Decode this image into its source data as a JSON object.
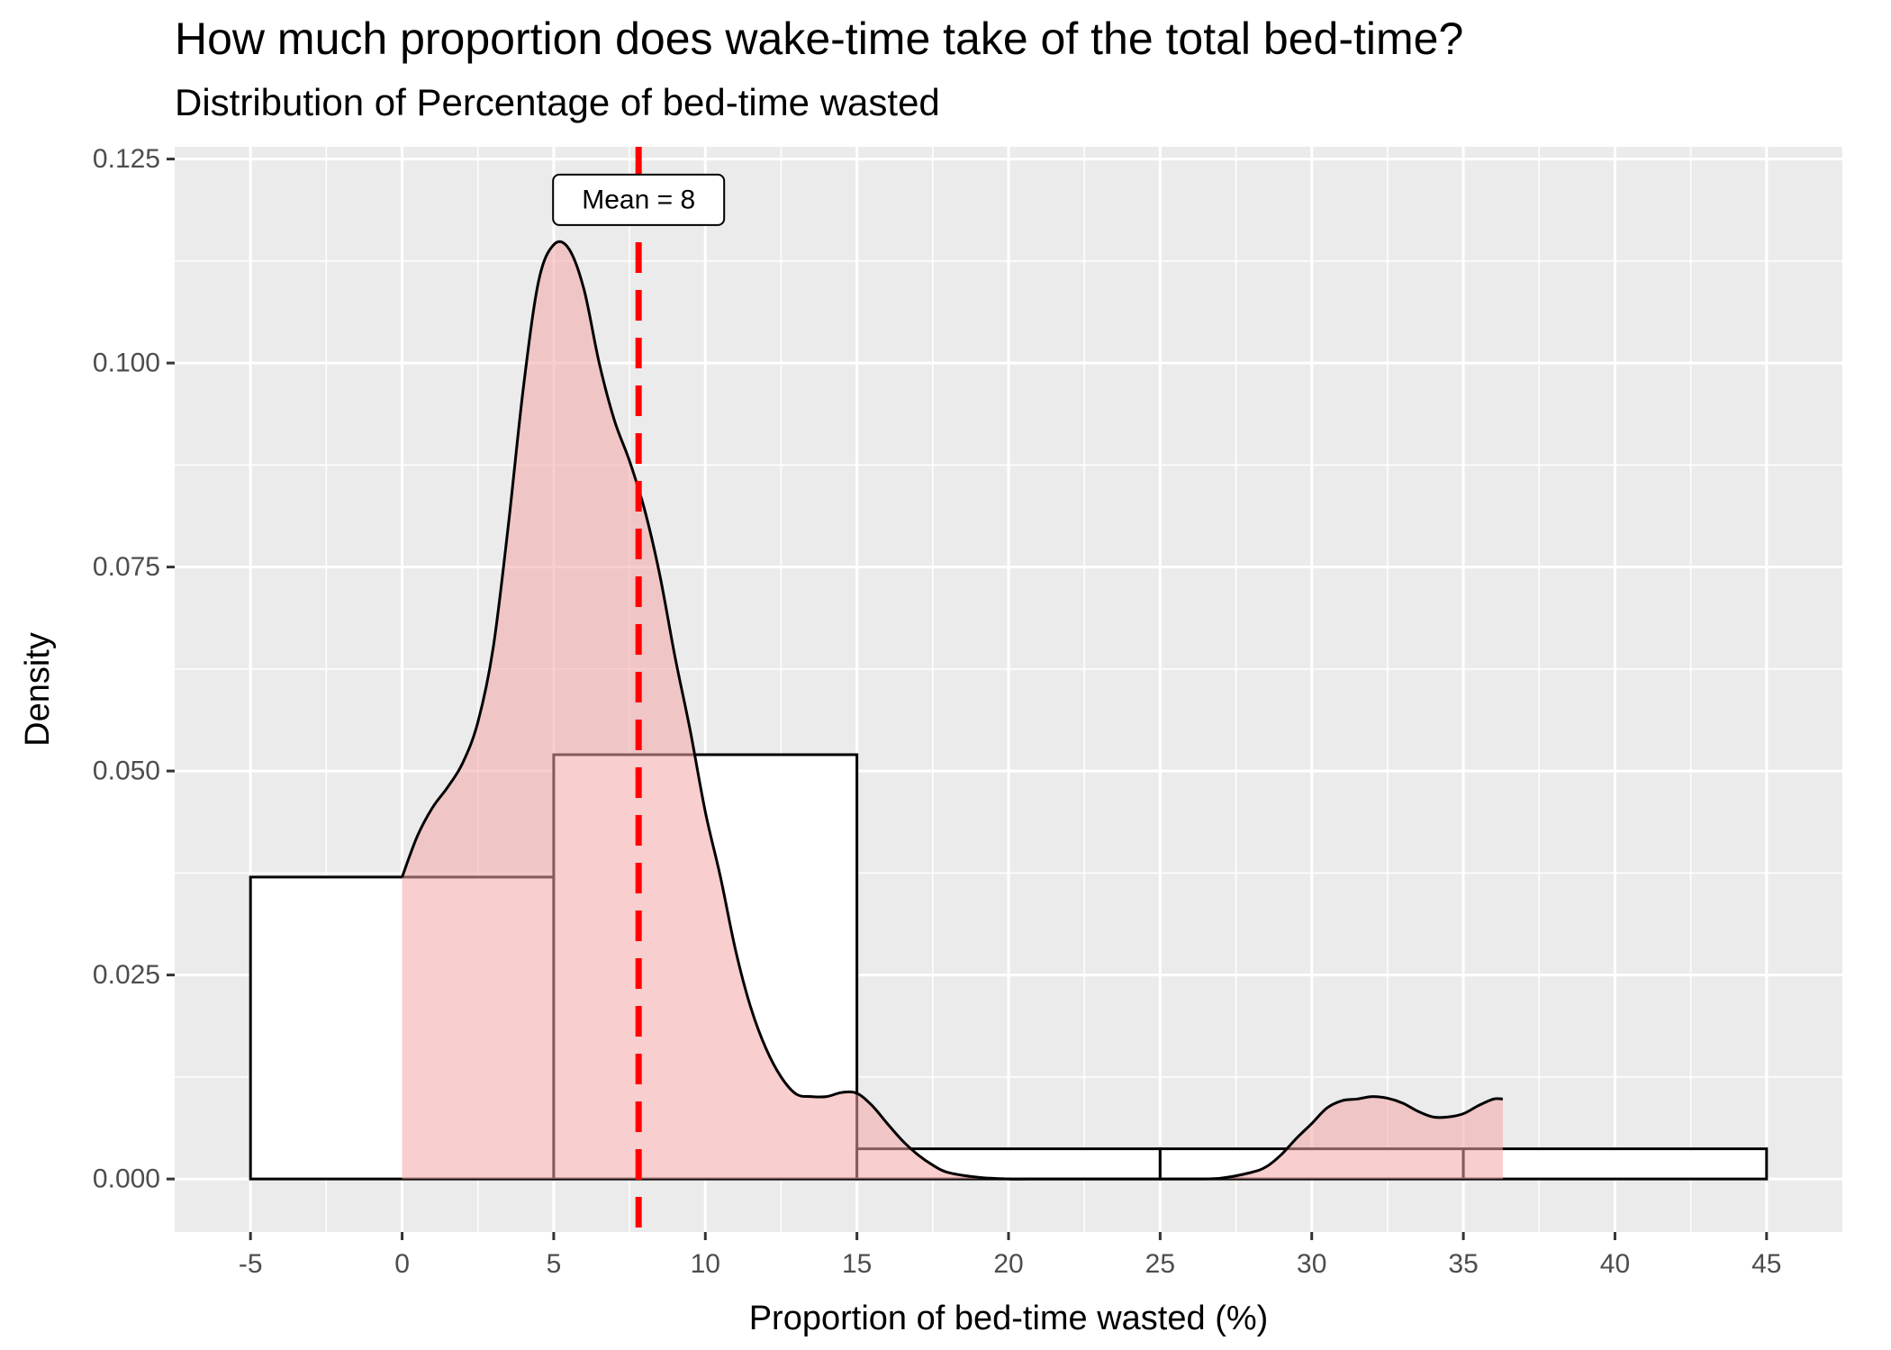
{
  "chart_data": {
    "type": "bar",
    "title": "How much proportion does wake-time take of the total bed-time?",
    "subtitle": "Distribution of Percentage of bed-time wasted",
    "xlabel": "Proportion of bed-time wasted (%)",
    "ylabel": "Density",
    "xlim": [
      -7.5,
      47.5
    ],
    "ylim": [
      -0.0065,
      0.1265
    ],
    "x_ticks": [
      -5,
      0,
      5,
      10,
      15,
      20,
      25,
      30,
      35,
      40,
      45
    ],
    "x_tick_labels": [
      "-5",
      "0",
      "5",
      "10",
      "15",
      "20",
      "25",
      "30",
      "35",
      "40",
      "45"
    ],
    "y_ticks": [
      0,
      0.025,
      0.05,
      0.075,
      0.1,
      0.125
    ],
    "y_tick_labels": [
      "0.000",
      "0.025",
      "0.050",
      "0.075",
      "0.100",
      "0.125"
    ],
    "grid": true,
    "histogram": {
      "bins": [
        {
          "x0": -5,
          "x1": 5,
          "density": 0.037
        },
        {
          "x0": 5,
          "x1": 15,
          "density": 0.052
        },
        {
          "x0": 15,
          "x1": 25,
          "density": 0.0037
        },
        {
          "x0": 25,
          "x1": 35,
          "density": 0.0037
        },
        {
          "x0": 35,
          "x1": 45,
          "density": 0.0037
        }
      ],
      "fill": "#ffffff",
      "stroke": "#000000"
    },
    "density_curve": {
      "x": [
        0,
        0.5,
        1,
        1.5,
        2,
        2.5,
        3,
        3.5,
        4,
        4.5,
        5,
        5.5,
        6,
        6.5,
        7,
        7.5,
        8,
        8.5,
        9,
        9.5,
        10,
        10.5,
        11,
        11.5,
        12,
        12.5,
        13,
        13.5,
        14,
        14.5,
        15,
        15.5,
        16,
        16.5,
        17,
        17.5,
        18,
        19,
        20,
        21,
        22,
        23,
        24,
        25,
        26,
        27,
        28,
        28.5,
        29,
        29.5,
        30,
        30.5,
        31,
        31.5,
        32,
        32.5,
        33,
        33.5,
        34,
        34.5,
        35,
        35.5,
        36,
        36.3
      ],
      "y": [
        0.037,
        0.042,
        0.0455,
        0.048,
        0.051,
        0.056,
        0.065,
        0.08,
        0.097,
        0.11,
        0.1145,
        0.114,
        0.109,
        0.1,
        0.093,
        0.088,
        0.082,
        0.074,
        0.064,
        0.055,
        0.045,
        0.037,
        0.028,
        0.021,
        0.016,
        0.0125,
        0.0104,
        0.0101,
        0.0101,
        0.0106,
        0.0105,
        0.009,
        0.0068,
        0.0047,
        0.003,
        0.0017,
        0.0008,
        0.0002,
        0.0,
        0.0,
        0.0,
        0.0,
        0.0,
        0.0,
        0.0,
        0.0001,
        0.0008,
        0.0015,
        0.003,
        0.005,
        0.0068,
        0.0087,
        0.0096,
        0.0098,
        0.0101,
        0.0099,
        0.0093,
        0.0083,
        0.0076,
        0.0076,
        0.008,
        0.009,
        0.0098,
        0.0098
      ],
      "fill": "#f4a6a6",
      "fill_opacity": 0.55,
      "stroke": "#000000"
    },
    "mean_line": {
      "x": 7.8,
      "color": "#ff0000",
      "style": "dashed"
    },
    "annotation": {
      "text": "Mean =  8",
      "x": 7.8,
      "y": 0.12
    }
  },
  "colors": {
    "panel_background": "#ebebeb",
    "grid": "#ffffff",
    "axis_text": "#4d4d4d"
  }
}
